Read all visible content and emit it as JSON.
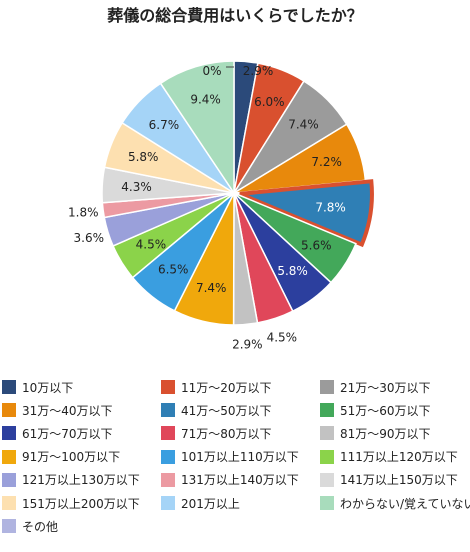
{
  "chart_data": {
    "type": "pie",
    "title": "葬儀の総合費用はいくらでしたか？",
    "slices": [
      {
        "name": "10万以下",
        "value": 2.9,
        "label": "2.9%",
        "color": "#2b4a7a"
      },
      {
        "name": "11万～20万以下",
        "value": 6.0,
        "label": "6.0%",
        "color": "#d9502f"
      },
      {
        "name": "21万～30万以下",
        "value": 7.4,
        "label": "7.4%",
        "color": "#9b9b9b"
      },
      {
        "name": "31万～40万以下",
        "value": 7.2,
        "label": "7.2%",
        "color": "#e8890c"
      },
      {
        "name": "41万～50万以下",
        "value": 7.8,
        "label": "7.8%",
        "color": "#2f7fb5"
      },
      {
        "name": "51万～60万以下",
        "value": 5.6,
        "label": "5.6%",
        "color": "#43a85a"
      },
      {
        "name": "61万～70万以下",
        "value": 5.8,
        "label": "5.8%",
        "color": "#2c3f9e"
      },
      {
        "name": "71万～80万以下",
        "value": 4.5,
        "label": "4.5%",
        "color": "#e0475a"
      },
      {
        "name": "81万～90万以下",
        "value": 2.9,
        "label": "2.9%",
        "color": "#c2c2c2"
      },
      {
        "name": "91万～100万以下",
        "value": 7.4,
        "label": "7.4%",
        "color": "#f0a80c"
      },
      {
        "name": "101万以上110万以下",
        "value": 6.5,
        "label": "6.5%",
        "color": "#3a9ee0"
      },
      {
        "name": "111万以上120万以下",
        "value": 4.5,
        "label": "4.5%",
        "color": "#8bd34a"
      },
      {
        "name": "121万以上130万以下",
        "value": 3.6,
        "label": "3.6%",
        "color": "#9aa0da"
      },
      {
        "name": "131万以上140万以下",
        "value": 1.8,
        "label": "1.8%",
        "color": "#ec9aa2"
      },
      {
        "name": "141万以上150万以下",
        "value": 4.3,
        "label": "4.3%",
        "color": "#dadada"
      },
      {
        "name": "151万以上200万以下",
        "value": 5.8,
        "label": "5.8%",
        "color": "#fde0b0"
      },
      {
        "name": "201万以上",
        "value": 6.7,
        "label": "6.7%",
        "color": "#a5d4f7"
      },
      {
        "name": "わからない/覚えていない",
        "value": 9.4,
        "label": "9.4%",
        "color": "#a8dcbc"
      },
      {
        "name": "その他",
        "value": 0,
        "label": "0%",
        "color": "#b0b4e0"
      }
    ],
    "highlighted_slice": "41万～50万以下",
    "legend_position": "bottom"
  }
}
